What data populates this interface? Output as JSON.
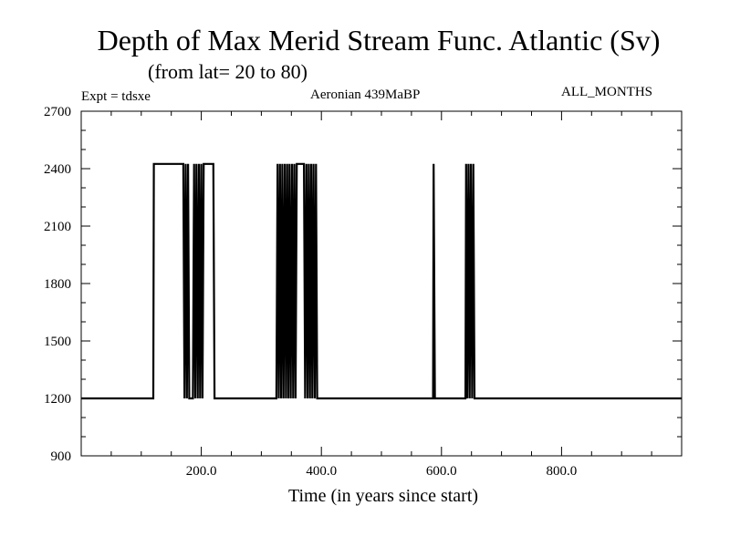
{
  "header": {
    "title": "Depth of Max Merid Stream Func. Atlantic (Sv)",
    "subtitle": "(from lat= 20 to 80)",
    "expt": "Expt = tdsxe",
    "center_label": "Aeronian 439MaBP",
    "right_label": "ALL_MONTHS"
  },
  "colors": {
    "line": "#000000",
    "frame": "#000000",
    "background": "#ffffff"
  },
  "chart_data": {
    "type": "line",
    "title": "Depth of Max Merid Stream Func. Atlantic (Sv)",
    "subtitle": "(from lat= 20 to 80)",
    "xlabel": "Time (in years since start)",
    "ylabel": "",
    "xlim": [
      0,
      1000
    ],
    "ylim": [
      900,
      2700
    ],
    "x_ticks": [
      200,
      400,
      600,
      800
    ],
    "x_tick_labels": [
      "200.0",
      "400.0",
      "600.0",
      "800.0"
    ],
    "y_ticks": [
      900,
      1200,
      1500,
      1800,
      2100,
      2400,
      2700
    ],
    "y_tick_labels": [
      "900",
      "1200",
      "1500",
      "1800",
      "2100",
      "2400",
      "2700"
    ],
    "grid": false,
    "legend": "none",
    "series": [
      {
        "x": [
          0,
          120,
          121,
          170,
          172,
          174,
          176,
          178,
          180,
          182,
          186,
          188,
          190,
          192,
          194,
          196,
          198,
          200,
          202,
          204,
          206,
          208,
          210,
          212,
          220,
          222,
          224,
          325,
          327,
          329,
          331,
          333,
          335,
          337,
          339,
          341,
          343,
          345,
          347,
          349,
          351,
          353,
          355,
          357,
          359,
          361,
          363,
          365,
          367,
          369,
          371,
          373,
          375,
          377,
          379,
          381,
          383,
          385,
          387,
          389,
          391,
          393,
          395,
          397,
          586,
          587,
          589,
          591,
          640,
          641,
          643,
          645,
          647,
          649,
          651,
          653,
          655,
          1000
        ],
        "y": [
          1200,
          1200,
          2425,
          2425,
          1200,
          2425,
          1200,
          2425,
          1200,
          1200,
          1200,
          2425,
          1200,
          2425,
          1200,
          2425,
          1200,
          2425,
          1200,
          2425,
          2425,
          2425,
          2425,
          2425,
          2425,
          1200,
          1200,
          1200,
          2425,
          1200,
          2425,
          1200,
          2425,
          1200,
          2425,
          1200,
          2425,
          1200,
          2425,
          1200,
          2425,
          1200,
          2425,
          1200,
          2425,
          2425,
          2425,
          2425,
          2425,
          2425,
          2425,
          1200,
          2425,
          1200,
          2425,
          1200,
          2425,
          1200,
          2425,
          1200,
          2425,
          1200,
          1200,
          1200,
          1200,
          2425,
          1200,
          1200,
          1200,
          2425,
          1200,
          2425,
          1200,
          2425,
          1200,
          2425,
          1200,
          1200
        ]
      }
    ]
  }
}
